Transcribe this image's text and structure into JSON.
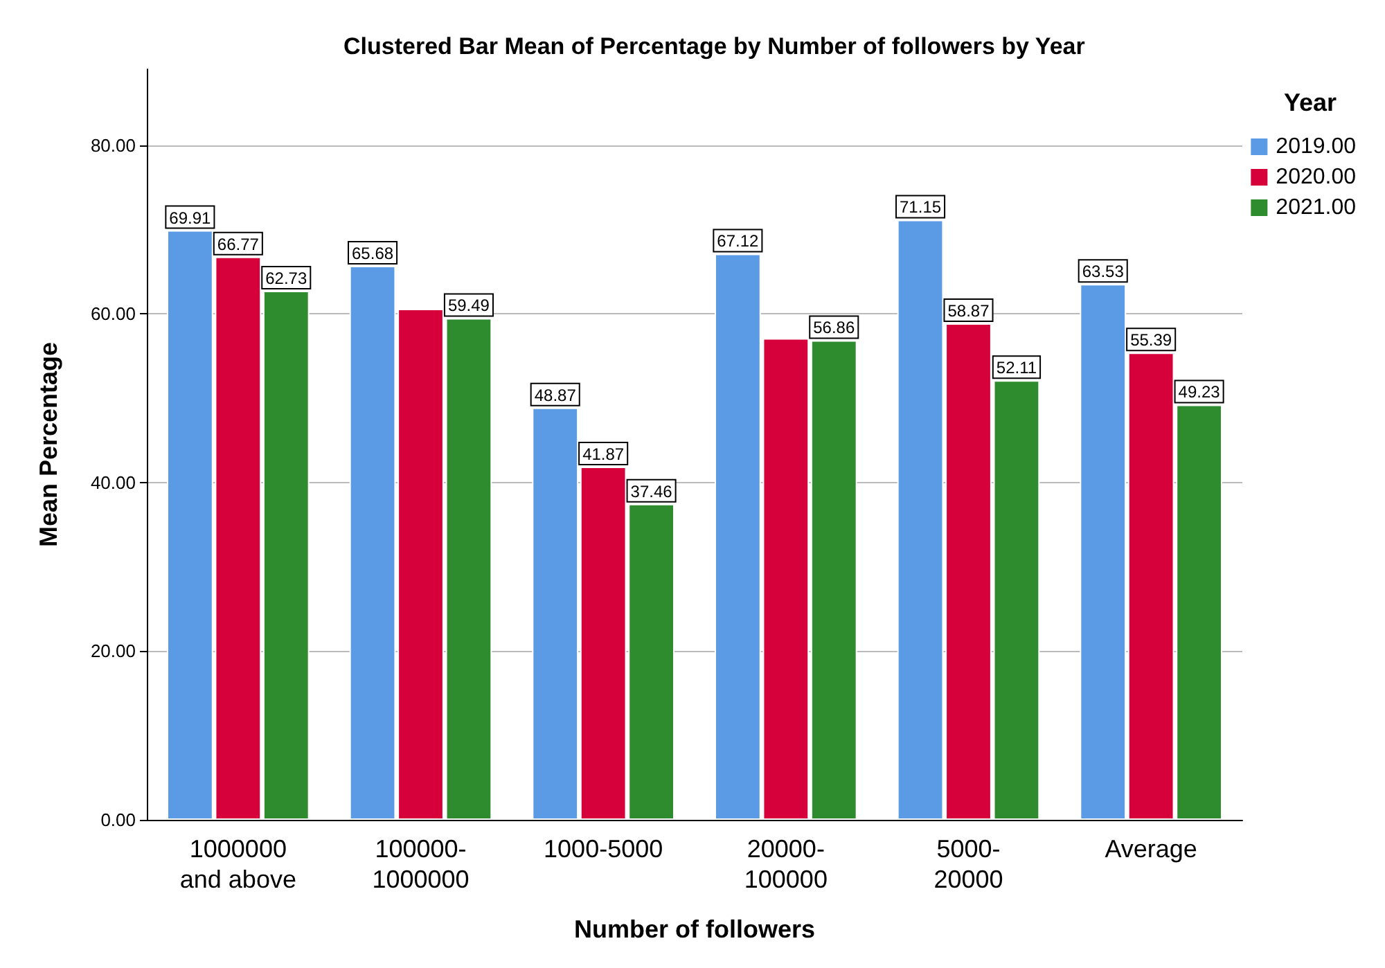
{
  "chart_data": {
    "type": "bar",
    "title": "Clustered Bar Mean of Percentage by Number of followers by Year",
    "xlabel": "Number of followers",
    "ylabel": "Mean Percentage",
    "legend_title": "Year",
    "legend": "top right",
    "grid": "y",
    "categories": [
      "1000000\nand above",
      "100000-\n1000000",
      "1000-5000",
      "20000-\n100000",
      "5000-\n20000",
      "Average"
    ],
    "ylim": [
      0,
      89
    ],
    "yticks": [
      {
        "value": 0,
        "label": "0.00"
      },
      {
        "value": 20,
        "label": "20.00"
      },
      {
        "value": 40,
        "label": "40.00"
      },
      {
        "value": 60,
        "label": "60.00"
      },
      {
        "value": 80,
        "label": "80.00"
      }
    ],
    "series": [
      {
        "name": "2019.00",
        "color": "#5b9be6",
        "values": [
          69.91,
          65.68,
          48.87,
          67.12,
          71.15,
          63.53
        ],
        "value_labels": [
          "69.91",
          "65.68",
          "48.87",
          "67.12",
          "71.15",
          "63.53"
        ]
      },
      {
        "name": "2020.00",
        "color": "#d6003a",
        "values": [
          66.77,
          60.6,
          41.87,
          57.1,
          58.87,
          55.39
        ],
        "value_labels": [
          "66.77",
          null,
          "41.87",
          null,
          "58.87",
          "55.39"
        ]
      },
      {
        "name": "2021.00",
        "color": "#2e8b2e",
        "values": [
          62.73,
          59.49,
          37.46,
          56.86,
          52.11,
          49.23
        ],
        "value_labels": [
          "62.73",
          "59.49",
          "37.46",
          "56.86",
          "52.11",
          "49.23"
        ]
      }
    ]
  }
}
